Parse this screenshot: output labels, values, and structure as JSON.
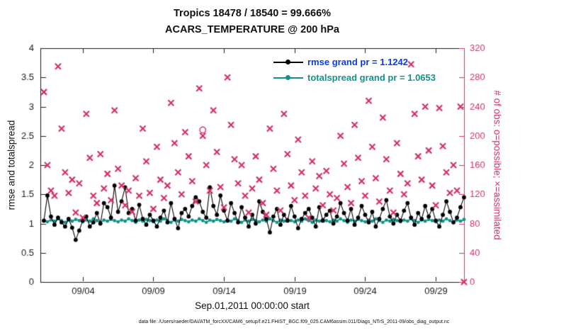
{
  "caption": "data file: /Users/raeder/DAI/ATM_forcXX/CAM6_setup/f.e21.FHIST_BGC.f09_025.CAM6assim.011/Diags_NTrS_2011-09/obs_diag_output.nc",
  "colors": {
    "rmse": "#000000",
    "totalspread": "#12938a",
    "obs": "#d2306a",
    "legend_text_rmse": "#0b3cdd",
    "axis": "#1a1a1a"
  },
  "chart_data": {
    "type": "line+scatter",
    "title": "Tropics 18478 / 18540 = 99.666%",
    "subtitle": "ACARS_TEMPERATURE @ 200 hPa",
    "xlabel": "Sep.01,2011 00:00:00 start",
    "ylabel_left": "rmse and totalspread",
    "ylabel_right": "# of obs: o=possible; ×=assimilated",
    "legend": [
      {
        "label": "rmse grand pr = 1.1242",
        "series": "rmse"
      },
      {
        "label": "totalspread grand pr = 1.0653",
        "series": "totalspread"
      }
    ],
    "x_range": [
      0,
      30
    ],
    "x_start_day": 0.25,
    "x_step_days": 0.25,
    "x_ticks": [
      {
        "day": 3,
        "label": "09/04"
      },
      {
        "day": 8,
        "label": "09/09"
      },
      {
        "day": 13,
        "label": "09/14"
      },
      {
        "day": 18,
        "label": "09/19"
      },
      {
        "day": 23,
        "label": "09/24"
      },
      {
        "day": 28,
        "label": "09/29"
      }
    ],
    "y_left": {
      "range": [
        0,
        4
      ],
      "tick_values": [
        0,
        0.5,
        1,
        1.5,
        2,
        2.5,
        3,
        3.5,
        4
      ],
      "tick_labels": [
        "0",
        "0.5",
        "1",
        "1.5",
        "2",
        "2.5",
        "3",
        "3.5",
        "4"
      ]
    },
    "y_right": {
      "range": [
        0,
        320
      ],
      "tick_values": [
        0,
        40,
        80,
        120,
        160,
        200,
        240,
        280,
        320
      ],
      "tick_labels": [
        "0",
        "40",
        "80",
        "120",
        "160",
        "200",
        "240",
        "280",
        "320"
      ]
    },
    "grand_pr": {
      "rmse": 1.1242,
      "totalspread": 1.0653
    },
    "obs_counts": {
      "possible_total": 18540,
      "assimilated_total": 18478,
      "percent": 99.666
    },
    "series": [
      {
        "name": "rmse",
        "axis": "left",
        "marker": "dot",
        "values": [
          1.05,
          1.48,
          1.12,
          0.98,
          1.1,
          1.02,
          0.95,
          1.08,
          0.93,
          0.72,
          0.88,
          1.05,
          1.12,
          0.95,
          1.02,
          1.18,
          1.0,
          1.35,
          1.28,
          1.1,
          1.65,
          1.2,
          1.38,
          1.62,
          1.18,
          1.25,
          1.05,
          1.32,
          1.08,
          0.98,
          1.15,
          1.05,
          0.95,
          1.1,
          1.22,
          1.02,
          1.35,
          1.08,
          0.92,
          1.18,
          1.25,
          1.12,
          1.3,
          1.45,
          1.38,
          1.2,
          1.1,
          1.62,
          1.3,
          1.15,
          1.48,
          1.22,
          1.05,
          1.35,
          1.18,
          1.02,
          1.28,
          1.1,
          0.95,
          1.15,
          1.0,
          1.38,
          1.2,
          1.08,
          0.85,
          1.12,
          1.25,
          0.98,
          1.15,
          1.05,
          1.3,
          1.12,
          0.92,
          1.08,
          1.18,
          1.25,
          1.1,
          0.95,
          1.28,
          1.05,
          1.15,
          1.22,
          1.0,
          1.12,
          1.35,
          1.18,
          1.05,
          1.25,
          0.98,
          1.1,
          1.3,
          1.15,
          1.02,
          1.2,
          0.95,
          1.08,
          1.25,
          1.4,
          1.12,
          1.0,
          1.15,
          1.05,
          1.22,
          1.35,
          1.1,
          0.98,
          1.18,
          1.08,
          1.3,
          1.12,
          1.25,
          1.05,
          0.95,
          1.15,
          1.38,
          1.2,
          1.02,
          1.1,
          1.28,
          1.45
        ]
      },
      {
        "name": "totalspread",
        "axis": "left",
        "marker": "dot",
        "values": [
          1.05,
          1.03,
          1.06,
          1.04,
          1.08,
          1.05,
          1.02,
          1.06,
          1.04,
          1.07,
          1.05,
          1.03,
          1.06,
          1.04,
          1.08,
          1.05,
          1.02,
          1.06,
          1.04,
          1.07,
          1.05,
          1.03,
          1.06,
          1.04,
          1.08,
          1.05,
          1.02,
          1.06,
          1.04,
          1.07,
          1.05,
          1.03,
          1.06,
          1.04,
          1.08,
          1.05,
          1.02,
          1.06,
          1.04,
          1.07,
          1.05,
          1.03,
          1.06,
          1.04,
          1.08,
          1.05,
          1.02,
          1.06,
          1.04,
          1.07,
          1.05,
          1.03,
          1.06,
          1.04,
          1.08,
          1.05,
          1.02,
          1.06,
          1.04,
          1.07,
          1.05,
          1.03,
          1.06,
          1.04,
          1.08,
          1.05,
          1.02,
          1.06,
          1.04,
          1.07,
          1.05,
          1.03,
          1.06,
          1.04,
          1.08,
          1.05,
          1.02,
          1.06,
          1.04,
          1.07,
          1.05,
          1.03,
          1.06,
          1.04,
          1.08,
          1.05,
          1.02,
          1.06,
          1.04,
          1.07,
          1.05,
          1.03,
          1.06,
          1.04,
          1.08,
          1.05,
          1.02,
          1.06,
          1.04,
          1.07,
          1.05,
          1.03,
          1.06,
          1.04,
          1.08,
          1.05,
          1.02,
          1.06,
          1.04,
          1.07,
          1.05,
          1.03,
          1.06,
          1.04,
          1.08,
          1.05,
          1.02,
          1.06,
          1.04,
          1.07
        ]
      },
      {
        "name": "obs_assimilated",
        "axis": "right",
        "marker": "x",
        "values": [
          260,
          160,
          125,
          118,
          295,
          210,
          150,
          122,
          140,
          95,
          135,
          88,
          230,
          170,
          118,
          108,
          175,
          128,
          148,
          112,
          235,
          155,
          132,
          105,
          125,
          96,
          142,
          118,
          210,
          165,
          122,
          100,
          185,
          140,
          115,
          132,
          245,
          190,
          150,
          120,
          205,
          172,
          138,
          110,
          265,
          200,
          160,
          125,
          235,
          178,
          130,
          102,
          280,
          215,
          168,
          135,
          160,
          118,
          95,
          128,
          172,
          140,
          108,
          92,
          210,
          155,
          125,
          98,
          230,
          175,
          132,
          112,
          195,
          150,
          118,
          88,
          165,
          128,
          145,
          105,
          152,
          120,
          98,
          115,
          200,
          162,
          130,
          108,
          215,
          170,
          138,
          118,
          248,
          185,
          142,
          110,
          225,
          168,
          125,
          95,
          190,
          148,
          120,
          135,
          298,
          230,
          172,
          140,
          240,
          180,
          132,
          105,
          238,
          186,
          150,
          122,
          160,
          125,
          240,
          0
        ]
      }
    ],
    "possible_circles": [
      {
        "index": 45,
        "value": 208
      }
    ]
  }
}
